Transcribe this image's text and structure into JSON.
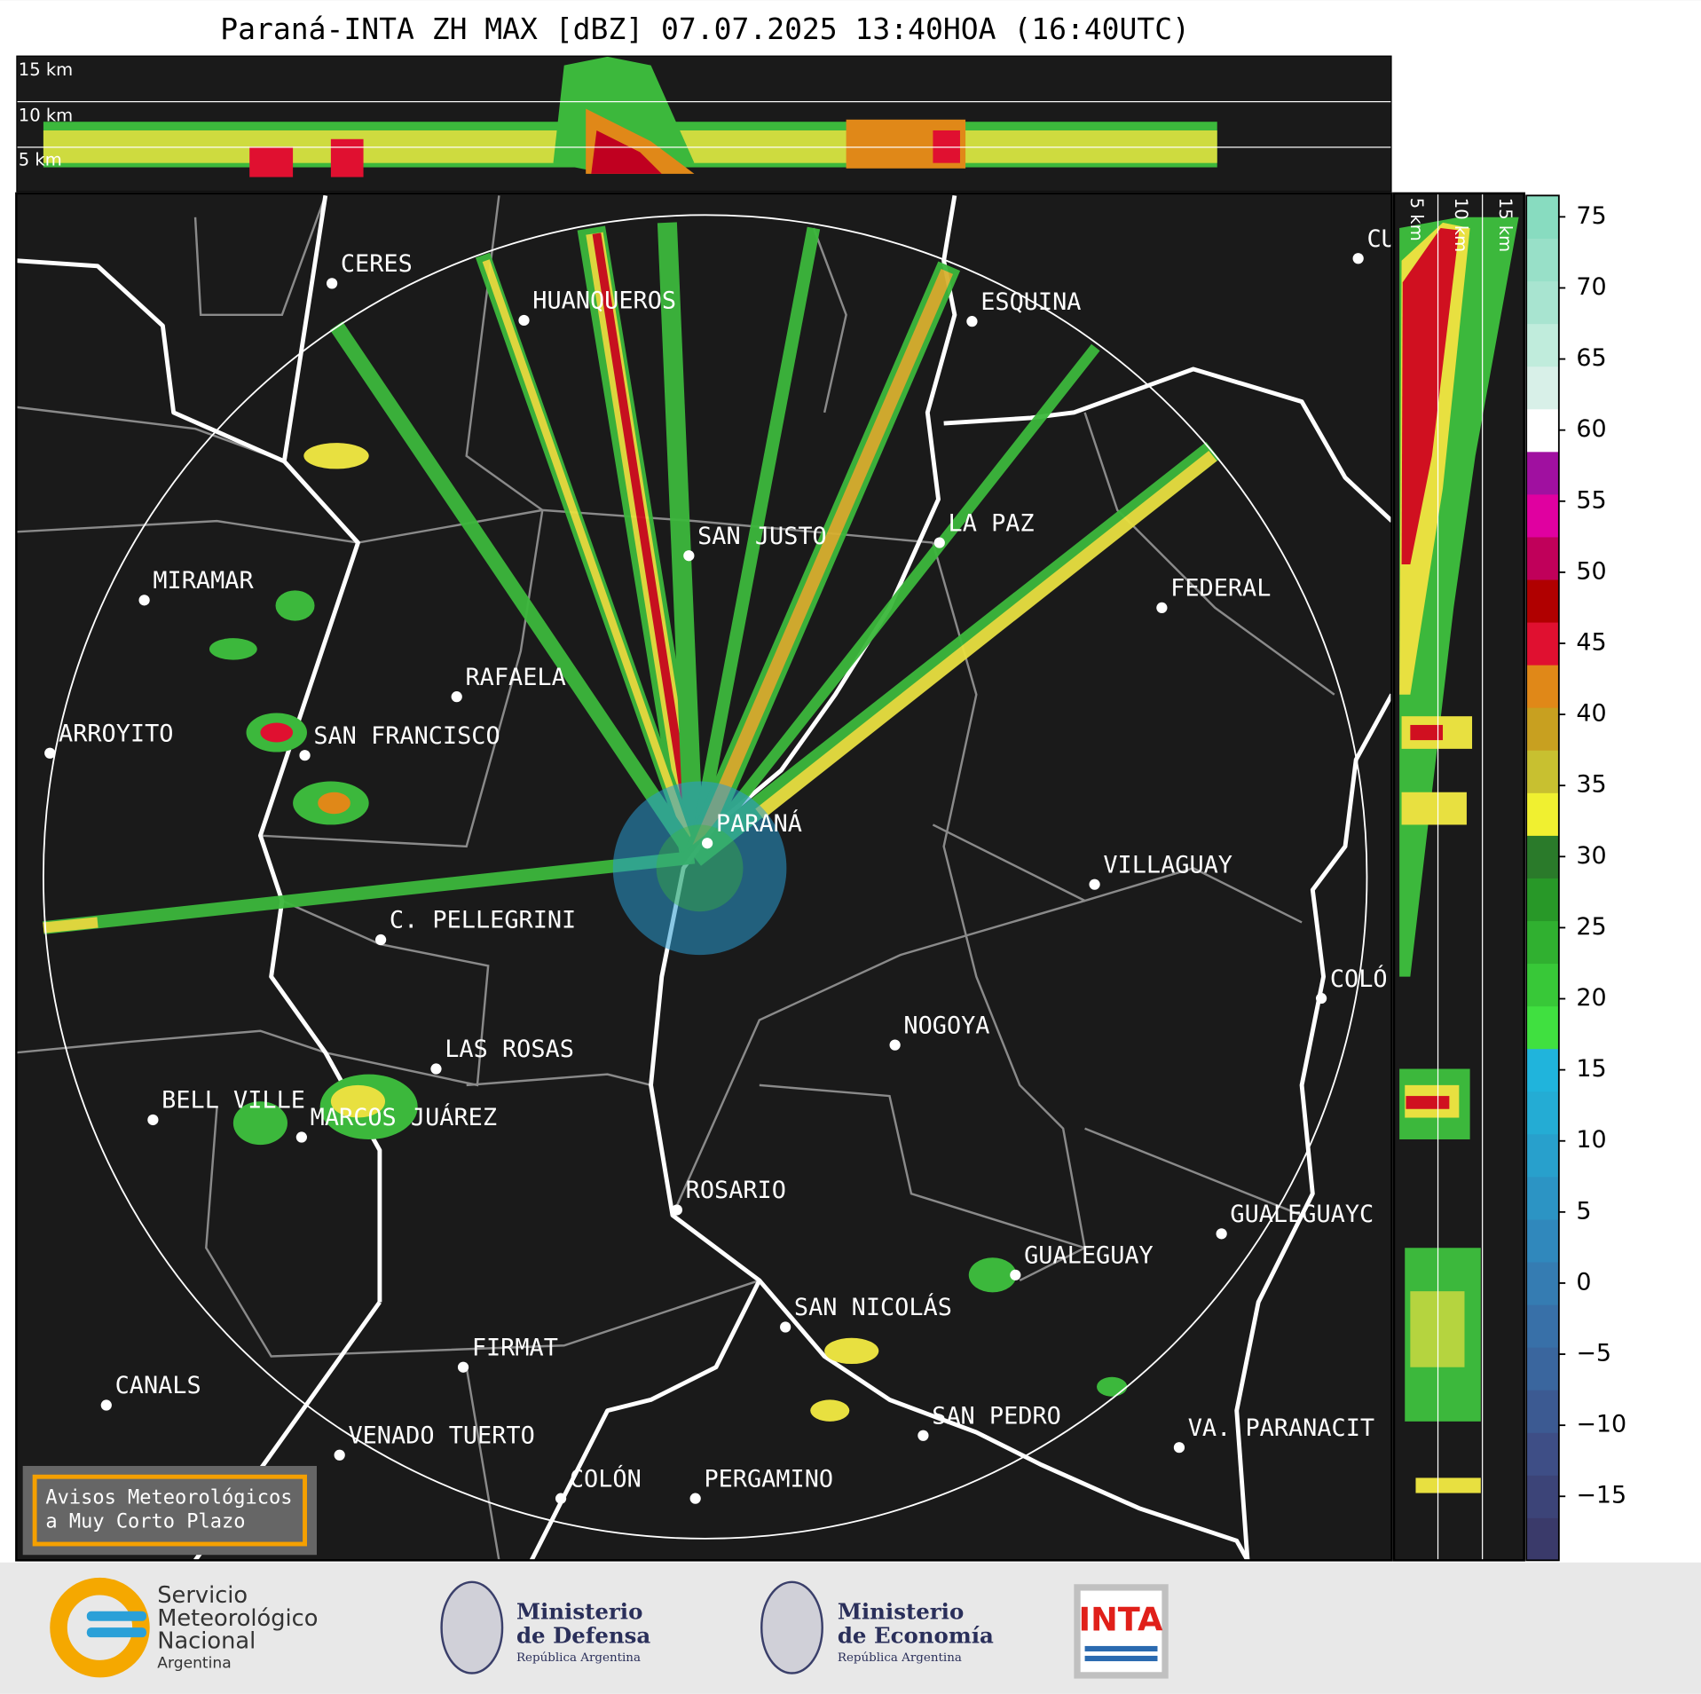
{
  "title": "Paraná-INTA ZH MAX [dBZ] 07.07.2025 13:40HOA (16:40UTC)",
  "cross_section_top": {
    "labels": [
      "15 km",
      "10 km",
      "5 km"
    ]
  },
  "cross_section_right": {
    "labels": [
      "5 km",
      "10 km",
      "15 km"
    ]
  },
  "cities": [
    "CERES",
    "HUANQUEROS",
    "ESQUINA",
    "SAN JUSTO",
    "LA PAZ",
    "MIRAMAR",
    "FEDERAL",
    "RAFAELA",
    "ARROYITO",
    "SAN FRANCISCO",
    "PARANÁ",
    "VILLAGUAY",
    "C. PELLEGRINI",
    "COLÓ",
    "NOGOYA",
    "LAS ROSAS",
    "BELL VILLE",
    "MARCOS JUÁREZ",
    "ROSARIO",
    "GUALEGUAYC",
    "GUALEGUAY",
    "SAN NICOLÁS",
    "FIRMAT",
    "CANALS",
    "SAN PEDRO",
    "VA. PARANACIT",
    "VENADO TUERTO",
    "COLÓN",
    "PERGAMINO",
    "CU"
  ],
  "colorbar": {
    "ylim": [
      -19.5,
      76.5
    ],
    "yticks": [
      75,
      70,
      65,
      60,
      55,
      50,
      45,
      40,
      35,
      30,
      25,
      20,
      15,
      10,
      5,
      0,
      {
        "value": -5,
        "label": "−5"
      },
      {
        "value": -10,
        "label": "−10"
      },
      {
        "value": -15,
        "label": "−15"
      }
    ],
    "colors": [
      "#3a3a6a",
      "#3c4478",
      "#3e4e86",
      "#3c5a92",
      "#3a669e",
      "#3870a8",
      "#357cb2",
      "#3088bc",
      "#2c94c4",
      "#28a0cc",
      "#24acd4",
      "#20b4dc",
      "#40e040",
      "#38c838",
      "#30b030",
      "#289828",
      "#2a7a2a",
      "#f0f030",
      "#c8c030",
      "#c8a020",
      "#e08818",
      "#e01030",
      "#b00000",
      "#c0005a",
      "#e000a0",
      "#a010a0",
      "#ffffff",
      "#d8f0e8",
      "#c0ecdc",
      "#a8e4d0",
      "#98e0c8",
      "#88dcc0"
    ]
  },
  "notice": {
    "lines": [
      "Avisos Meteorológicos",
      "a Muy Corto Plazo"
    ]
  },
  "footer": {
    "smn": [
      "Servicio",
      "Meteorológico",
      "Nacional",
      "Argentina"
    ],
    "defensa": [
      "Ministerio",
      "de Defensa",
      "República Argentina"
    ],
    "economia": [
      "Ministerio",
      "de Economía",
      "República Argentina"
    ],
    "inta": "INTA"
  }
}
